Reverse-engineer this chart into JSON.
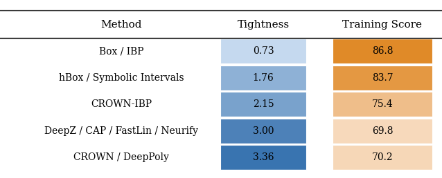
{
  "col_headers": [
    "Method",
    "Tightness",
    "Training Score"
  ],
  "rows": [
    {
      "method": "Box / IBP",
      "tightness": 0.73,
      "score": 86.8
    },
    {
      "method": "hBox / Symbolic Intervals",
      "tightness": 1.76,
      "score": 83.7
    },
    {
      "method": "CROWN-IBP",
      "tightness": 2.15,
      "score": 75.4
    },
    {
      "method": "DeepZ / CAP / FastLin / Neurify",
      "tightness": 3.0,
      "score": 69.8
    },
    {
      "method": "CROWN / DeepPoly",
      "tightness": 3.36,
      "score": 70.2
    }
  ],
  "tightness_min": 0.73,
  "tightness_max": 3.36,
  "score_min": 69.8,
  "score_max": 86.8,
  "blue_light": "#c5d9ef",
  "blue_dark": "#3a74b0",
  "orange_light": "#f7d9bb",
  "orange_dark": "#e08a28",
  "bg_color": "#ffffff",
  "line_color": "#000000",
  "fig_width": 6.38,
  "fig_height": 2.58,
  "dpi": 100
}
